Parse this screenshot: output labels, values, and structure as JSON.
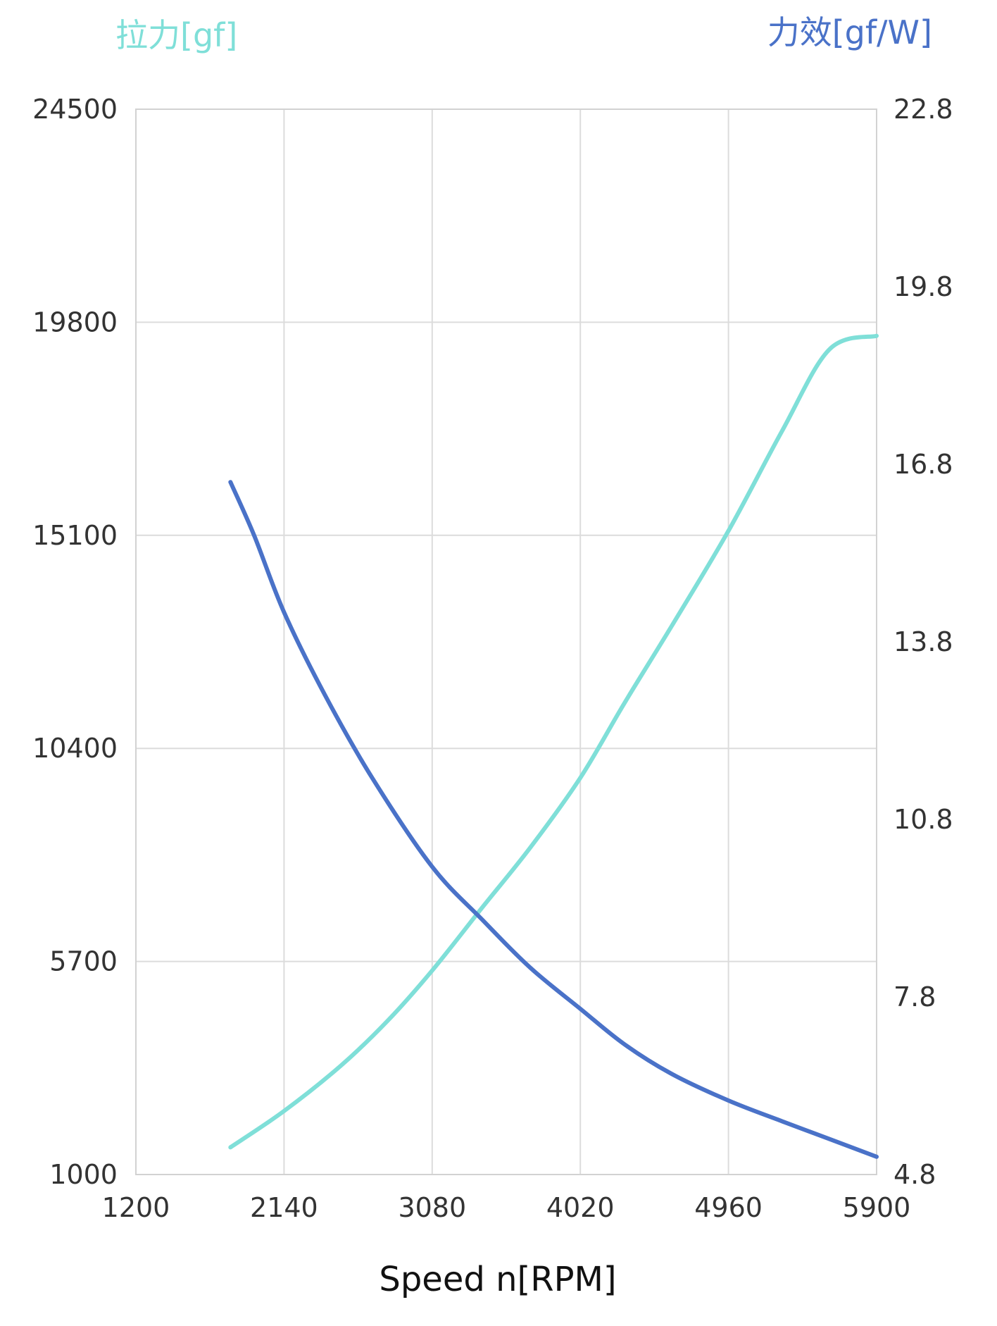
{
  "chart_data": {
    "type": "line",
    "title": "",
    "xlabel": "Speed n[RPM]",
    "ylabel_left": "拉力[gf]",
    "ylabel_right": "力效[gf/W]",
    "x_ticks": [
      1200,
      2140,
      3080,
      4020,
      4960,
      5900
    ],
    "y_left_ticks": [
      1000,
      5700,
      10400,
      15100,
      19800,
      24500
    ],
    "y_right_ticks": [
      4.8,
      7.8,
      10.8,
      13.8,
      16.8,
      19.8,
      22.8
    ],
    "xlim": [
      1200,
      5900
    ],
    "ylim_left": [
      1000,
      24500
    ],
    "ylim_right": [
      4.8,
      22.8
    ],
    "grid": true,
    "colors": {
      "thrust": "#7fdfd8",
      "efficiency": "#4a72c8",
      "grid": "#dcdcdc"
    },
    "series": [
      {
        "axis": "left",
        "color": "#7fdfd8",
        "x": [
          1800,
          2140,
          2500,
          2800,
          3080,
          3400,
          3700,
          4020,
          4300,
          4600,
          4960,
          5300,
          5600,
          5900
        ],
        "values": [
          1600,
          2400,
          3400,
          4400,
          5500,
          6900,
          8200,
          9750,
          11400,
          13100,
          15200,
          17400,
          19200,
          19500
        ]
      },
      {
        "axis": "right",
        "color": "#4a72c8",
        "x": [
          1800,
          1950,
          2140,
          2400,
          2700,
          3080,
          3400,
          3700,
          4020,
          4300,
          4600,
          4960,
          5300,
          5600,
          5900
        ],
        "values": [
          16.5,
          15.6,
          14.3,
          12.9,
          11.5,
          10.0,
          9.1,
          8.3,
          7.6,
          7.0,
          6.5,
          6.05,
          5.7,
          5.4,
          5.1
        ]
      }
    ]
  }
}
